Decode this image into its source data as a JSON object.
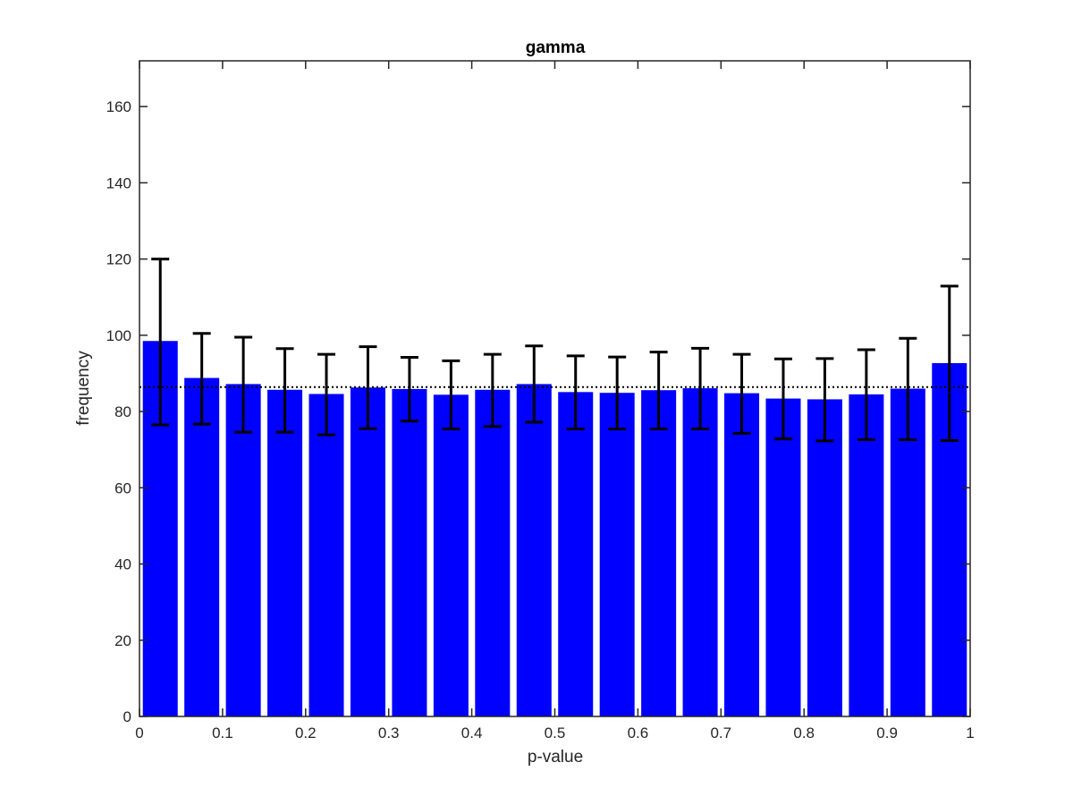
{
  "chart_data": {
    "type": "bar",
    "title": "gamma",
    "xlabel": "p-value",
    "ylabel": "frequency",
    "xlim": [
      0,
      1
    ],
    "ylim": [
      0,
      172
    ],
    "grid": false,
    "bar_color": "#0000ff",
    "errorbar_color": "#000000",
    "reference_line": {
      "value": 86.4,
      "style": "dotted",
      "color": "#000000"
    },
    "x_ticks": [
      {
        "value": 0,
        "label": "0"
      },
      {
        "value": 0.1,
        "label": "0.1"
      },
      {
        "value": 0.2,
        "label": "0.2"
      },
      {
        "value": 0.3,
        "label": "0.3"
      },
      {
        "value": 0.4,
        "label": "0.4"
      },
      {
        "value": 0.5,
        "label": "0.5"
      },
      {
        "value": 0.6,
        "label": "0.6"
      },
      {
        "value": 0.7,
        "label": "0.7"
      },
      {
        "value": 0.8,
        "label": "0.8"
      },
      {
        "value": 0.9,
        "label": "0.9"
      },
      {
        "value": 1,
        "label": "1"
      }
    ],
    "y_ticks": [
      {
        "value": 0,
        "label": "0"
      },
      {
        "value": 20,
        "label": "20"
      },
      {
        "value": 40,
        "label": "40"
      },
      {
        "value": 60,
        "label": "60"
      },
      {
        "value": 80,
        "label": "80"
      },
      {
        "value": 100,
        "label": "100"
      },
      {
        "value": 120,
        "label": "120"
      },
      {
        "value": 140,
        "label": "140"
      },
      {
        "value": 160,
        "label": "160"
      }
    ],
    "bars": [
      {
        "x": 0.025,
        "value": 98.5,
        "err_low": 76.5,
        "err_high": 120.0
      },
      {
        "x": 0.075,
        "value": 88.8,
        "err_low": 76.7,
        "err_high": 100.5
      },
      {
        "x": 0.125,
        "value": 87.2,
        "err_low": 74.6,
        "err_high": 99.5
      },
      {
        "x": 0.175,
        "value": 85.7,
        "err_low": 74.6,
        "err_high": 96.5
      },
      {
        "x": 0.225,
        "value": 84.6,
        "err_low": 73.9,
        "err_high": 95.0
      },
      {
        "x": 0.275,
        "value": 86.3,
        "err_low": 75.5,
        "err_high": 97.0
      },
      {
        "x": 0.325,
        "value": 85.9,
        "err_low": 77.5,
        "err_high": 94.2
      },
      {
        "x": 0.375,
        "value": 84.4,
        "err_low": 75.4,
        "err_high": 93.3
      },
      {
        "x": 0.425,
        "value": 85.7,
        "err_low": 76.1,
        "err_high": 95.0
      },
      {
        "x": 0.475,
        "value": 87.2,
        "err_low": 77.2,
        "err_high": 97.2
      },
      {
        "x": 0.525,
        "value": 85.1,
        "err_low": 75.4,
        "err_high": 94.6
      },
      {
        "x": 0.575,
        "value": 84.9,
        "err_low": 75.4,
        "err_high": 94.3
      },
      {
        "x": 0.625,
        "value": 85.6,
        "err_low": 75.4,
        "err_high": 95.6
      },
      {
        "x": 0.675,
        "value": 86.1,
        "err_low": 75.4,
        "err_high": 96.6
      },
      {
        "x": 0.725,
        "value": 84.8,
        "err_low": 74.3,
        "err_high": 95.0
      },
      {
        "x": 0.775,
        "value": 83.4,
        "err_low": 72.8,
        "err_high": 93.8
      },
      {
        "x": 0.825,
        "value": 83.2,
        "err_low": 72.3,
        "err_high": 93.9
      },
      {
        "x": 0.875,
        "value": 84.5,
        "err_low": 72.6,
        "err_high": 96.2
      },
      {
        "x": 0.925,
        "value": 86.0,
        "err_low": 72.6,
        "err_high": 99.2
      },
      {
        "x": 0.975,
        "value": 92.7,
        "err_low": 72.4,
        "err_high": 112.9
      }
    ],
    "bar_width": 0.042
  }
}
